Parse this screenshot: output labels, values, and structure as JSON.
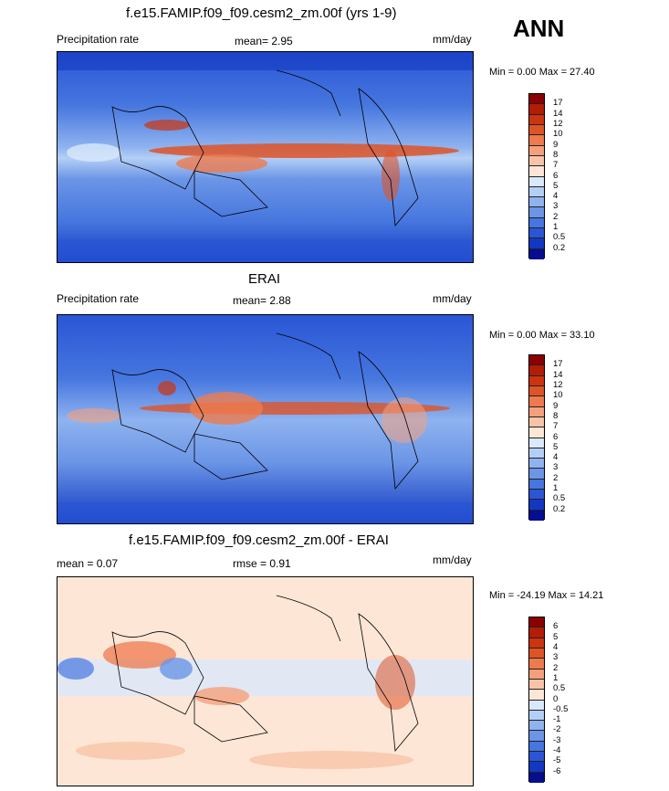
{
  "season": "ANN",
  "units": "mm/day",
  "panels": [
    {
      "title": "f.e15.FAMIP.f09_f09.cesm2_zm.00f (yrs 1-9)",
      "left_label": "Precipitation rate",
      "stat1": "mean=   2.95",
      "right_label": "mm/day",
      "minmax": "Min =   0.00 Max =  27.40"
    },
    {
      "title": "ERAI",
      "left_label": "Precipitation rate",
      "stat1": "mean=   2.88",
      "right_label": "mm/day",
      "minmax": "Min =   0.00 Max =  33.10"
    },
    {
      "title": "f.e15.FAMIP.f09_f09.cesm2_zm.00f - ERAI",
      "left_label": "mean =   0.07",
      "stat1": "rmse =   0.91",
      "right_label": "mm/day",
      "minmax": "Min = -24.19 Max =  14.21"
    }
  ],
  "colorbars": {
    "precip": {
      "levels": [
        "17",
        "14",
        "12",
        "10",
        "9",
        "8",
        "7",
        "6",
        "5",
        "4",
        "3",
        "2",
        "1",
        "0.5",
        "0.2"
      ],
      "colors": [
        "#8b0000",
        "#b21d05",
        "#cc3410",
        "#de5427",
        "#ee7a4d",
        "#f5a07c",
        "#f8c4a8",
        "#fde6d6",
        "#d9e8fb",
        "#b4cff6",
        "#8fb3ef",
        "#6b95e6",
        "#4676df",
        "#2a56d6",
        "#1238c2",
        "#060d8f"
      ]
    },
    "diff": {
      "levels": [
        "6",
        "5",
        "4",
        "3",
        "2",
        "1",
        "0.5",
        "0",
        "-0.5",
        "-1",
        "-2",
        "-3",
        "-4",
        "-5",
        "-6"
      ],
      "colors": [
        "#8b0000",
        "#b21d05",
        "#cc3410",
        "#de5427",
        "#ee7a4d",
        "#f5a07c",
        "#f8c4a8",
        "#fde6d6",
        "#d9e8fb",
        "#b4cff6",
        "#8fb3ef",
        "#6b95e6",
        "#4676df",
        "#2a56d6",
        "#1238c2",
        "#060d8f"
      ]
    }
  }
}
